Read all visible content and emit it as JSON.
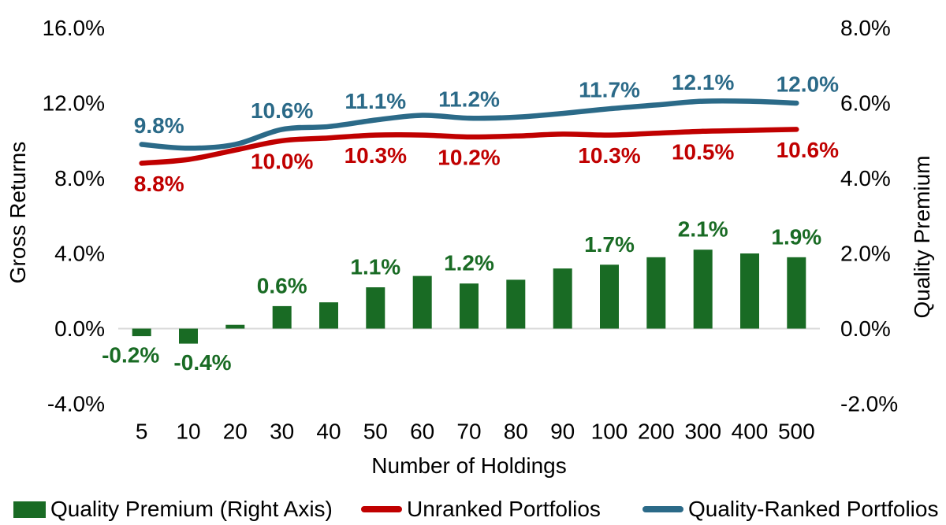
{
  "chart_data": {
    "type": "combo",
    "categories": [
      "5",
      "10",
      "20",
      "30",
      "40",
      "50",
      "60",
      "70",
      "80",
      "90",
      "100",
      "200",
      "300",
      "400",
      "500"
    ],
    "x_axis": {
      "title": "Number of Holdings"
    },
    "left_axis": {
      "title": "Gross Returns",
      "tick_labels": [
        "16.0%",
        "12.0%",
        "8.0%",
        "4.0%",
        "0.0%",
        "-4.0%"
      ],
      "tick_values": [
        16,
        12,
        8,
        4,
        0,
        -4
      ],
      "min": -4,
      "max": 16
    },
    "right_axis": {
      "title": "Quality Premium",
      "tick_labels": [
        "8.0%",
        "6.0%",
        "4.0%",
        "2.0%",
        "0.0%",
        "-2.0%"
      ],
      "tick_values": [
        8,
        6,
        4,
        2,
        0,
        -2
      ],
      "min": -2,
      "max": 8
    },
    "series": [
      {
        "name": "Quality Premium (Right Axis)",
        "type": "bar",
        "axis": "right",
        "color": "#196B24",
        "values": [
          -0.2,
          -0.4,
          0.1,
          0.6,
          0.7,
          1.1,
          1.4,
          1.2,
          1.3,
          1.6,
          1.7,
          1.9,
          2.1,
          2.0,
          1.9
        ],
        "labels": {
          "0": "-0.2%",
          "1": "-0.4%",
          "3": "0.6%",
          "5": "1.1%",
          "7": "1.2%",
          "10": "1.7%",
          "12": "2.1%",
          "14": "1.9%"
        }
      },
      {
        "name": "Unranked Portfolios",
        "type": "line",
        "axis": "left",
        "color": "#C00000",
        "label_side": "below",
        "values": [
          8.8,
          9.0,
          9.5,
          10.0,
          10.15,
          10.3,
          10.3,
          10.2,
          10.25,
          10.35,
          10.3,
          10.4,
          10.5,
          10.55,
          10.6
        ],
        "labels": {
          "0": "8.8%",
          "3": "10.0%",
          "5": "10.3%",
          "7": "10.2%",
          "10": "10.3%",
          "12": "10.5%",
          "14": "10.6%"
        }
      },
      {
        "name": "Quality-Ranked Portfolios",
        "type": "line",
        "axis": "left",
        "color": "#2B6A88",
        "label_side": "above",
        "values": [
          9.8,
          9.6,
          9.8,
          10.6,
          10.75,
          11.1,
          11.35,
          11.2,
          11.25,
          11.45,
          11.7,
          11.9,
          12.1,
          12.1,
          12.0
        ],
        "labels": {
          "0": "9.8%",
          "3": "10.6%",
          "5": "11.1%",
          "7": "11.2%",
          "10": "11.7%",
          "12": "12.1%",
          "14": "12.0%"
        }
      }
    ],
    "legend": [
      {
        "label": "Quality Premium (Right Axis)",
        "swatch": "bar",
        "color": "#196B24"
      },
      {
        "label": "Unranked Portfolios",
        "swatch": "line",
        "color": "#C00000"
      },
      {
        "label": "Quality-Ranked Portfolios",
        "swatch": "line",
        "color": "#2B6A88"
      }
    ],
    "style": {
      "grid_color": "#D9D9D9",
      "text_color": "#000000",
      "background": "#FFFFFF"
    },
    "grid": "zero-line-only",
    "legend_position": "bottom"
  }
}
